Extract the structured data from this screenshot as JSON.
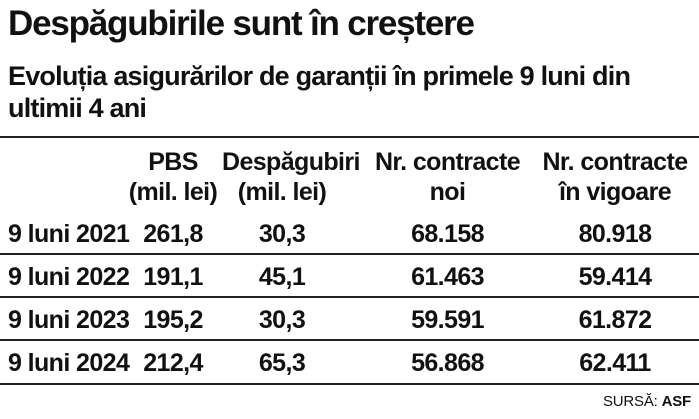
{
  "title": "Despăgubirile sunt în creștere",
  "subtitle": "Evoluția asigurărilor de garanții în primele 9 luni din ultimii 4 ani",
  "source": {
    "prefix": "SURSĂ:",
    "name": "ASF"
  },
  "chart_data": {
    "type": "table",
    "columns": [
      {
        "line1": "PBS",
        "line2": "(mil. lei)"
      },
      {
        "line1": "Despăgubiri",
        "line2": "(mil. lei)"
      },
      {
        "line1": "Nr. contracte",
        "line2": "noi"
      },
      {
        "line1": "Nr. contracte",
        "line2": "în vigoare"
      }
    ],
    "rows": [
      {
        "label": "9 luni 2021",
        "values": [
          "261,8",
          "30,3",
          "68.158",
          "80.918"
        ]
      },
      {
        "label": "9 luni 2022",
        "values": [
          "191,1",
          "45,1",
          "61.463",
          "59.414"
        ]
      },
      {
        "label": "9 luni 2023",
        "values": [
          "195,2",
          "30,3",
          "59.591",
          "61.872"
        ]
      },
      {
        "label": "9 luni 2024",
        "values": [
          "212,4",
          "65,3",
          "56.868",
          "62.411"
        ]
      }
    ]
  }
}
